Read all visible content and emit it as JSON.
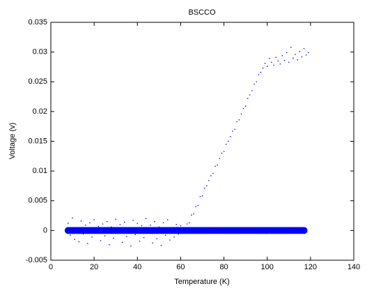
{
  "chart_data": {
    "type": "scatter",
    "title": "BSCCO",
    "x_label": "Temperature (K)",
    "y_label": "Voltage (v)",
    "xlim": [
      0,
      140
    ],
    "xticks": [
      0,
      20,
      40,
      60,
      80,
      100,
      120,
      140
    ],
    "ylim": [
      -0.005,
      0.035
    ],
    "yticks": [
      -0.005,
      0,
      0.005,
      0.01,
      0.015,
      0.02,
      0.025,
      0.03,
      0.035
    ],
    "series": [
      {
        "color": "#0000ff",
        "marker_size": 0.8,
        "x": [
          8,
          9,
          10,
          11,
          12,
          13,
          14,
          15,
          16,
          17,
          18,
          19,
          20,
          21,
          22,
          23,
          24,
          25,
          26,
          27,
          28,
          29,
          30,
          31,
          32,
          33,
          34,
          35,
          36,
          37,
          38,
          39,
          40,
          41,
          42,
          43,
          44,
          45,
          46,
          47,
          48,
          49,
          50,
          51,
          52,
          53,
          54,
          55,
          56,
          57,
          58,
          59,
          60,
          61,
          62,
          63,
          64,
          65,
          66,
          67,
          68,
          69,
          70,
          71,
          72,
          73,
          74,
          75,
          76,
          77,
          78,
          79,
          80,
          81,
          82,
          83,
          84,
          85,
          86,
          87,
          88,
          89,
          90,
          91,
          92,
          93,
          94,
          95,
          96,
          97,
          98,
          99,
          100,
          101,
          102,
          103,
          104,
          105,
          106,
          107,
          108,
          109,
          110,
          111,
          112,
          113,
          114,
          115,
          116,
          117,
          118,
          119
        ],
        "values": [
          0.0012,
          -0.0008,
          0.0021,
          -0.0015,
          0.0004,
          -0.0019,
          0.0016,
          -0.0006,
          0.0009,
          -0.0022,
          0.0013,
          -0.0011,
          0.0018,
          -0.0003,
          0.0007,
          -0.0017,
          0.0011,
          -0.0009,
          0.0015,
          -0.0024,
          0.0006,
          -0.0013,
          0.0019,
          -0.0005,
          0.001,
          -0.002,
          0.0014,
          -0.001,
          0.0003,
          -0.0026,
          0.0017,
          -0.0007,
          0.0012,
          -0.0018,
          0.0008,
          -0.0012,
          0.002,
          -0.0004,
          0.0009,
          -0.0021,
          0.0015,
          -0.0014,
          0.0006,
          -0.0025,
          0.0013,
          -0.0008,
          0.0018,
          -0.0016,
          0.0004,
          -0.0011,
          0.001,
          -0.0006,
          0.0008,
          -0.0003,
          0.0005,
          0.0011,
          0.0013,
          0.0026,
          0.0028,
          0.004,
          0.0042,
          0.0057,
          0.0058,
          0.0071,
          0.0075,
          0.0084,
          0.0092,
          0.0096,
          0.0108,
          0.011,
          0.0121,
          0.013,
          0.0133,
          0.0145,
          0.015,
          0.0158,
          0.0167,
          0.017,
          0.0183,
          0.0186,
          0.0196,
          0.0205,
          0.0209,
          0.0222,
          0.0228,
          0.0235,
          0.0246,
          0.025,
          0.0262,
          0.0266,
          0.0273,
          0.0281,
          0.0276,
          0.0289,
          0.0283,
          0.0278,
          0.0291,
          0.0285,
          0.028,
          0.0294,
          0.0286,
          0.0299,
          0.0283,
          0.0308,
          0.029,
          0.0296,
          0.0287,
          0.0301,
          0.0292,
          0.0306,
          0.0295,
          0.0299
        ]
      },
      {
        "color": "#0000ff",
        "marker_size": 5,
        "x": [
          8,
          9,
          10,
          11,
          12,
          13,
          14,
          15,
          16,
          17,
          18,
          19,
          20,
          21,
          22,
          23,
          24,
          25,
          26,
          27,
          28,
          29,
          30,
          31,
          32,
          33,
          34,
          35,
          36,
          37,
          38,
          39,
          40,
          41,
          42,
          43,
          44,
          45,
          46,
          47,
          48,
          49,
          50,
          51,
          52,
          53,
          54,
          55,
          56,
          57,
          58,
          59,
          60,
          61,
          62,
          63,
          64,
          65,
          66,
          67,
          68,
          69,
          70,
          71,
          72,
          73,
          74,
          75,
          76,
          77,
          78,
          79,
          80,
          81,
          82,
          83,
          84,
          85,
          86,
          87,
          88,
          89,
          90,
          91,
          92,
          93,
          94,
          95,
          96,
          97,
          98,
          99,
          100,
          101,
          102,
          103,
          104,
          105,
          106,
          107,
          108,
          109,
          110,
          111,
          112,
          113,
          114,
          115,
          116,
          117
        ],
        "values": [
          0,
          0,
          0,
          0,
          0,
          0,
          0,
          0,
          0,
          0,
          0,
          0,
          0,
          0,
          0,
          0,
          0,
          0,
          0,
          0,
          0,
          0,
          0,
          0,
          0,
          0,
          0,
          0,
          0,
          0,
          0,
          0,
          0,
          0,
          0,
          0,
          0,
          0,
          0,
          0,
          0,
          0,
          0,
          0,
          0,
          0,
          0,
          0,
          0,
          0,
          0,
          0,
          0,
          0,
          0,
          0,
          0,
          0,
          0,
          0,
          0,
          0,
          0,
          0,
          0,
          0,
          0,
          0,
          0,
          0,
          0,
          0,
          0,
          0,
          0,
          0,
          0,
          0,
          0,
          0,
          0,
          0,
          0,
          0,
          0,
          0,
          0,
          0,
          0,
          0,
          0,
          0,
          0,
          0,
          0,
          0,
          0,
          0,
          0,
          0,
          0,
          0,
          0,
          0,
          0,
          0,
          0,
          0,
          0,
          0
        ]
      }
    ]
  }
}
